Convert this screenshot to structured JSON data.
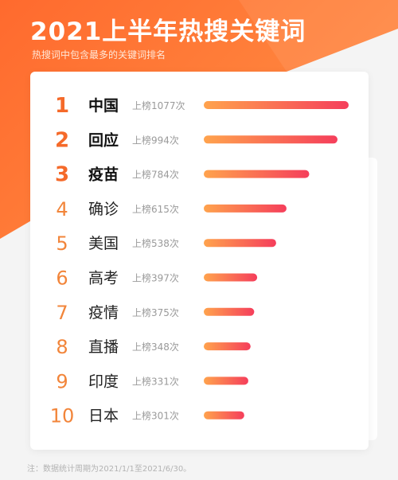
{
  "header": {
    "title": "2021上半年热搜关键词",
    "subtitle": "热搜词中包含最多的关键词排名"
  },
  "footnote": "注：数据统计周期为2021/1/1至2021/6/30。",
  "colors": {
    "accent": "#f56a2a",
    "bar_start": "#ffa34d",
    "bar_end": "#f53e5b"
  },
  "chart_data": {
    "type": "bar",
    "orientation": "horizontal",
    "title": "2021上半年热搜关键词",
    "subtitle": "热搜词中包含最多的关键词排名",
    "value_label_prefix": "上榜",
    "value_label_suffix": "次",
    "ranks": [
      1,
      2,
      3,
      4,
      5,
      6,
      7,
      8,
      9,
      10
    ],
    "categories": [
      "中国",
      "回应",
      "疫苗",
      "确诊",
      "美国",
      "高考",
      "疫情",
      "直播",
      "印度",
      "日本"
    ],
    "values": [
      1077,
      994,
      784,
      615,
      538,
      397,
      375,
      348,
      331,
      301
    ],
    "xlim": [
      0,
      1077
    ],
    "grid": false,
    "legend": "none"
  }
}
